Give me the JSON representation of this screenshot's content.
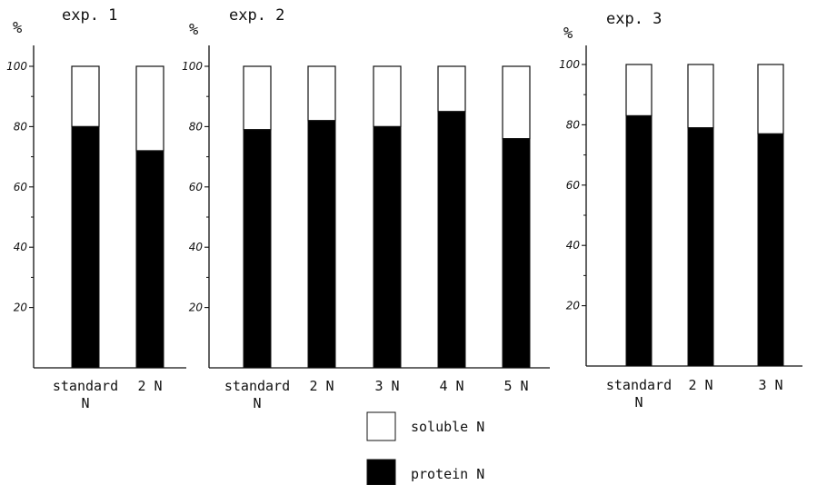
{
  "axis_unit_label": "%",
  "legend": {
    "items": [
      {
        "label": "soluble N",
        "color": "#ffffff"
      },
      {
        "label": "protein N",
        "color": "#000000"
      }
    ]
  },
  "colors": {
    "soluble": "#ffffff",
    "protein": "#000000",
    "ink": "#111111"
  },
  "chart_data": [
    {
      "type": "bar",
      "stacked": true,
      "title": "exp. 1",
      "ylabel": "%",
      "ylim": [
        0,
        100
      ],
      "yticks": [
        20,
        40,
        60,
        80,
        100
      ],
      "categories": [
        "standard N",
        "2 N"
      ],
      "category_lines": [
        [
          "standard",
          "N"
        ],
        [
          "2 N"
        ]
      ],
      "series": [
        {
          "name": "protein N",
          "values": [
            80,
            72
          ]
        },
        {
          "name": "soluble N",
          "values": [
            20,
            28
          ]
        }
      ]
    },
    {
      "type": "bar",
      "stacked": true,
      "title": "exp. 2",
      "ylabel": "%",
      "ylim": [
        0,
        100
      ],
      "yticks": [
        20,
        40,
        60,
        80,
        100
      ],
      "categories": [
        "standard N",
        "2 N",
        "3 N",
        "4 N",
        "5 N"
      ],
      "category_lines": [
        [
          "standard",
          "N"
        ],
        [
          "2 N"
        ],
        [
          "3 N"
        ],
        [
          "4 N"
        ],
        [
          "5 N"
        ]
      ],
      "series": [
        {
          "name": "protein N",
          "values": [
            79,
            82,
            80,
            85,
            76
          ]
        },
        {
          "name": "soluble N",
          "values": [
            21,
            18,
            20,
            15,
            24
          ]
        }
      ]
    },
    {
      "type": "bar",
      "stacked": true,
      "title": "exp. 3",
      "ylabel": "%",
      "ylim": [
        0,
        100
      ],
      "yticks": [
        20,
        40,
        60,
        80,
        100
      ],
      "categories": [
        "standard N",
        "2 N",
        "3 N"
      ],
      "category_lines": [
        [
          "standard",
          "N"
        ],
        [
          "2 N"
        ],
        [
          "3 N"
        ]
      ],
      "series": [
        {
          "name": "protein N",
          "values": [
            83,
            79,
            77
          ]
        },
        {
          "name": "soluble N",
          "values": [
            17,
            21,
            23
          ]
        }
      ]
    }
  ]
}
